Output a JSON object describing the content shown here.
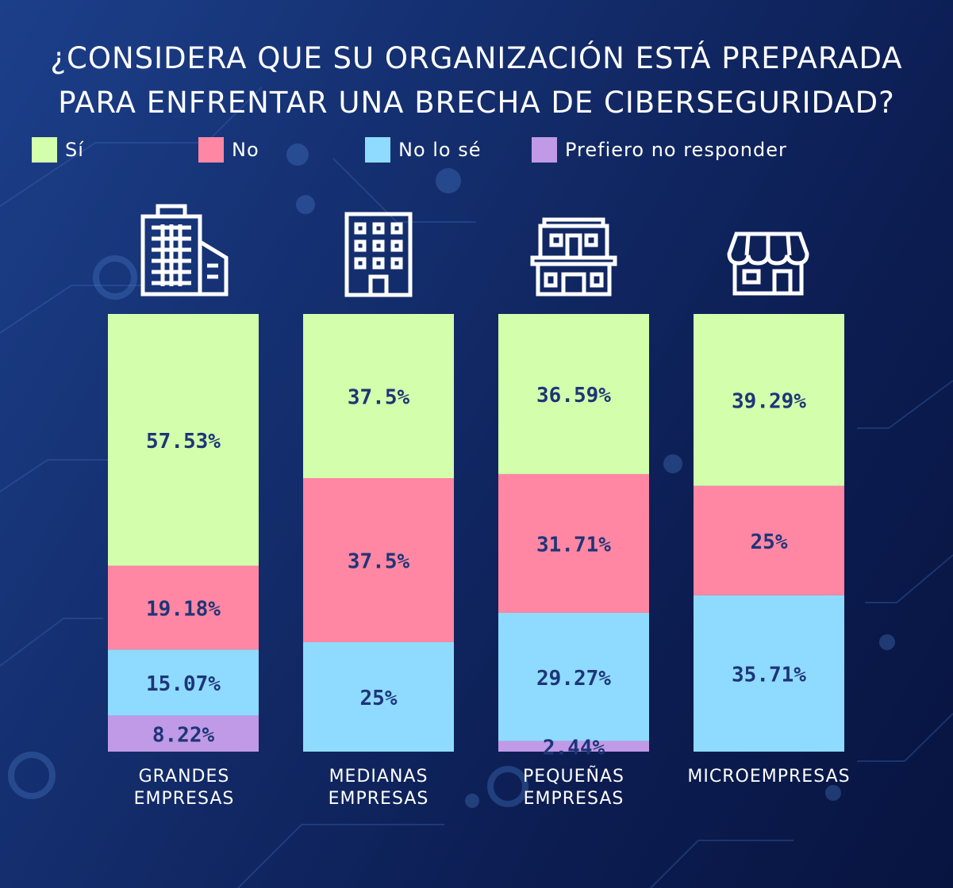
{
  "title_lines": [
    "¿CONSIDERA QUE SU ORGANIZACIÓN ESTÁ PREPARADA",
    "PARA ENFRENTAR UNA BRECHA DE CIBERSEGURIDAD?"
  ],
  "legend": [
    {
      "label": "Sí",
      "color": "#d3ffac"
    },
    {
      "label": "No",
      "color": "#ff87a3"
    },
    {
      "label": "No lo sé",
      "color": "#8fdbff"
    },
    {
      "label": "Prefiero no responder",
      "color": "#c09ae6"
    }
  ],
  "icons": [
    "office-tower-icon",
    "office-building-icon",
    "small-building-icon",
    "storefront-icon"
  ],
  "chart_data": {
    "type": "bar",
    "stacked": true,
    "normalized": true,
    "categories": [
      [
        "GRANDES",
        "EMPRESAS"
      ],
      [
        "MEDIANAS",
        "EMPRESAS"
      ],
      [
        "PEQUEÑAS",
        "EMPRESAS"
      ],
      [
        "MICROEMPRESAS"
      ]
    ],
    "series": [
      {
        "name": "Sí",
        "color": "#d3ffac",
        "values": [
          57.53,
          37.5,
          36.59,
          39.29
        ],
        "labels": [
          "57.53%",
          "37.5%",
          "36.59%",
          "39.29%"
        ]
      },
      {
        "name": "No",
        "color": "#ff87a3",
        "values": [
          19.18,
          37.5,
          31.71,
          25
        ],
        "labels": [
          "19.18%",
          "37.5%",
          "31.71%",
          "25%"
        ]
      },
      {
        "name": "No lo sé",
        "color": "#8fdbff",
        "values": [
          15.07,
          25,
          29.27,
          35.71
        ],
        "labels": [
          "15.07%",
          "25%",
          "29.27%",
          "35.71%"
        ]
      },
      {
        "name": "Prefiero no responder",
        "color": "#c09ae6",
        "values": [
          8.22,
          0,
          2.44,
          0
        ],
        "labels": [
          "8.22%",
          "",
          "2.44%",
          ""
        ]
      }
    ],
    "label_color": "#1e3578",
    "legend_position": "top",
    "grid": false
  }
}
